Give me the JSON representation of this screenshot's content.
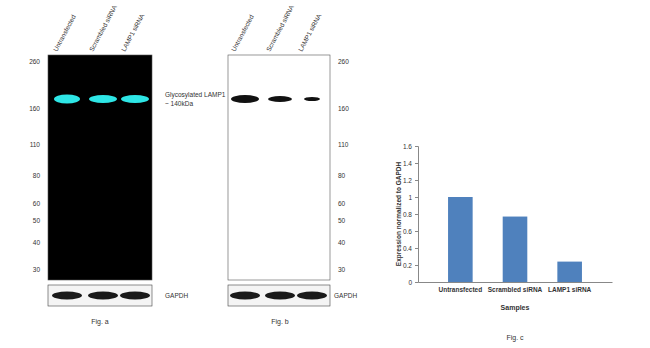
{
  "blots": [
    {
      "label": "Fig. a",
      "lanes": [
        "Untransfected",
        "Scrambled siRNA",
        "LAMP1 siRNA"
      ],
      "markers": [
        260,
        160,
        110,
        80,
        60,
        50,
        40,
        30
      ],
      "band_label": [
        "Glycosylated LAMP1",
        "~ 140kDa"
      ],
      "loading_control": "GAPDH"
    },
    {
      "label": "Fig. b",
      "lanes": [
        "Untransfected",
        "Scrambled siRNA",
        "LAMP1 siRNA"
      ],
      "markers": [
        260,
        160,
        110,
        80,
        60,
        50,
        40,
        30
      ],
      "loading_control": "GAPDH"
    }
  ],
  "chart_data": {
    "type": "bar",
    "caption": "Fig. c",
    "x_label": "Samples",
    "y_label": "Expression normalized to GAPDH",
    "categories": [
      "Untransfected",
      "Scrambled siRNA",
      "LAMP1 siRNA"
    ],
    "values": [
      1.0,
      0.77,
      0.24
    ],
    "color": "#4f81bd",
    "ylim": [
      0,
      1.6
    ],
    "yticks": [
      0,
      0.2,
      0.4,
      0.6,
      0.8,
      1,
      1.2,
      1.4,
      1.6
    ],
    "grid": false
  }
}
